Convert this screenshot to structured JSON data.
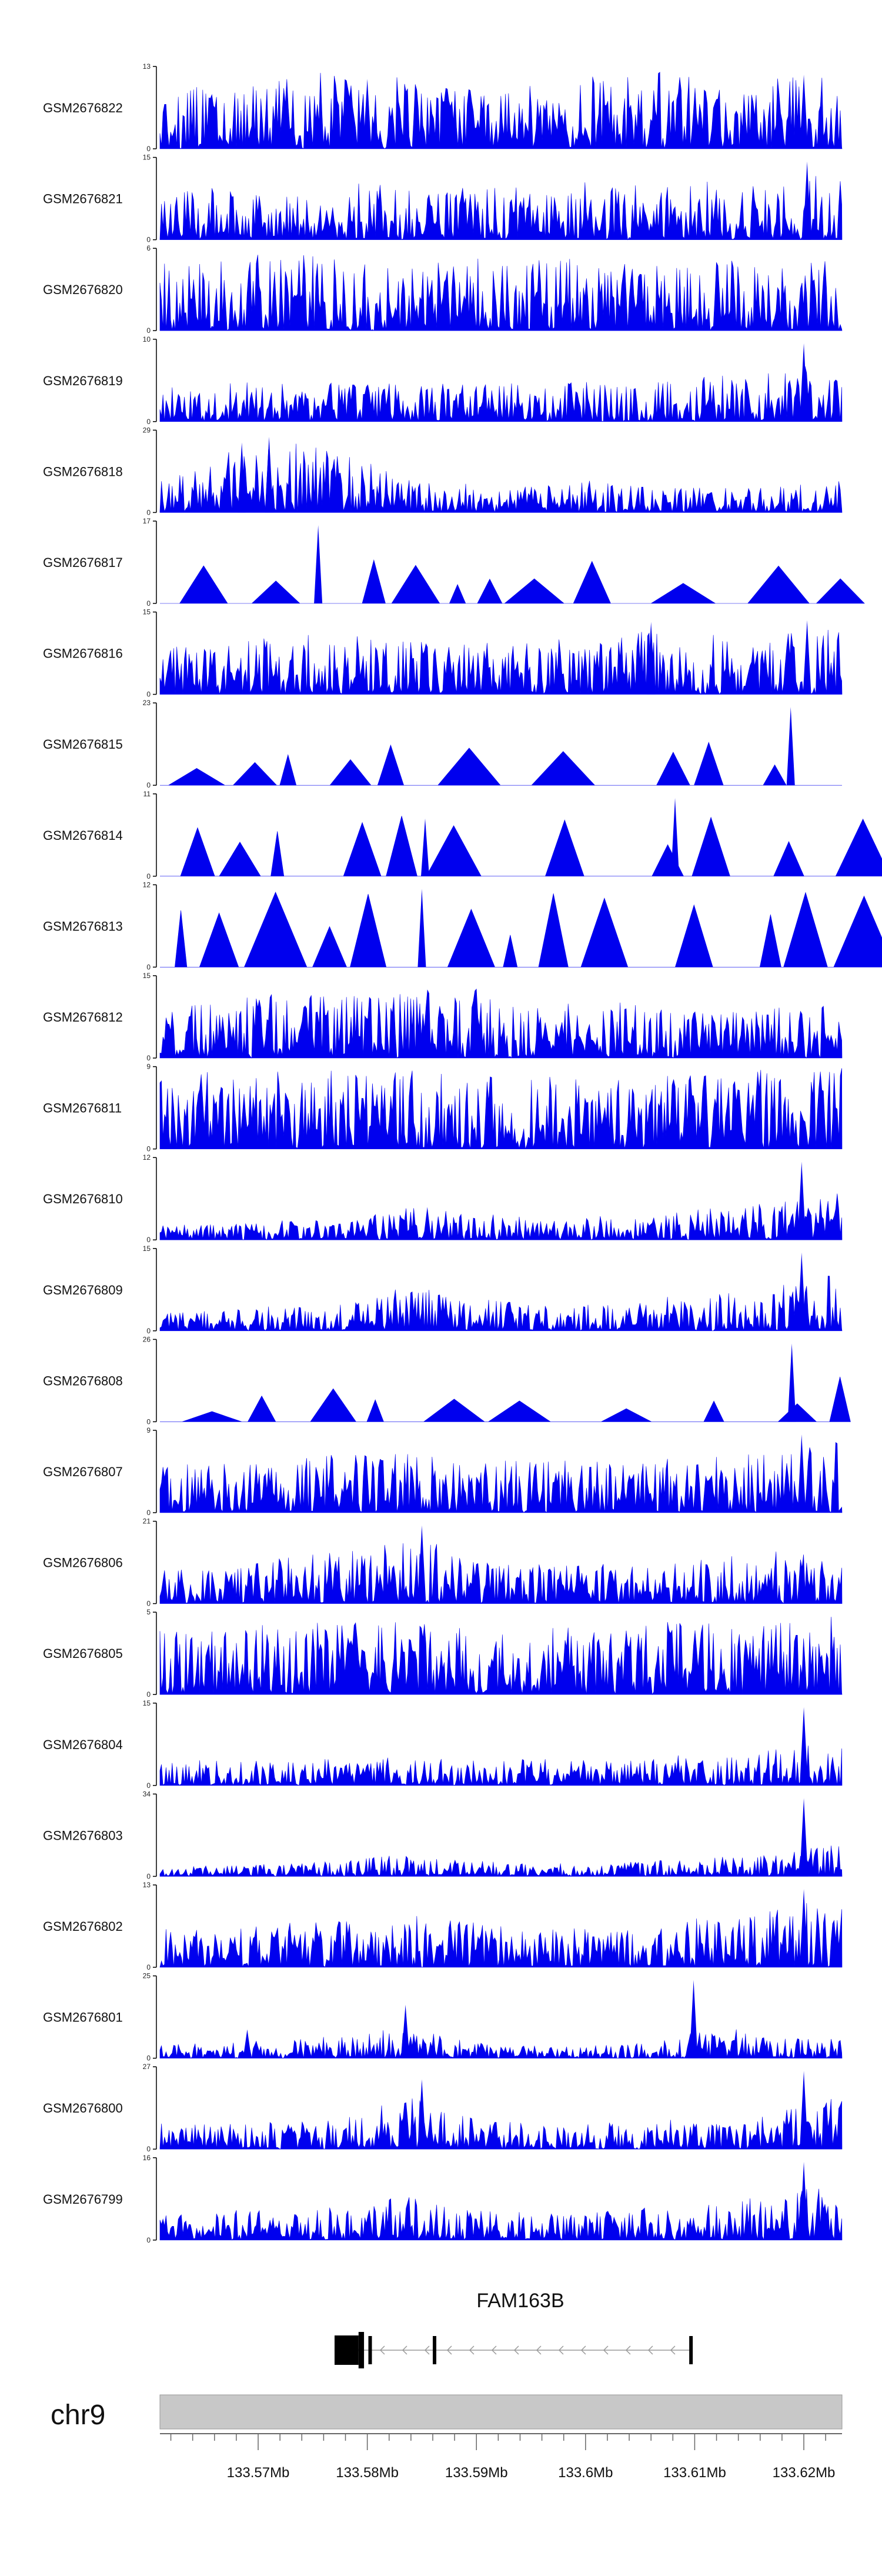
{
  "chart_data": {
    "type": "area",
    "title": "",
    "chromosome": "chr9",
    "x_range": [
      133561000,
      133623500
    ],
    "x_ticks": [
      133570000,
      133580000,
      133590000,
      133600000,
      133610000,
      133620000
    ],
    "x_tick_labels": [
      "133.57Mb",
      "133.58Mb",
      "133.59Mb",
      "133.6Mb",
      "133.61Mb",
      "133.62Mb"
    ],
    "tracks": [
      {
        "name": "GSM2676822",
        "ymax": 13,
        "ymin_label": "0",
        "ymax_label": "13",
        "seed": 22,
        "sparse": false,
        "prof": [
          0.45,
          0.5,
          0.55,
          0.6,
          0.55,
          0.45,
          0.5,
          0.55,
          0.6,
          0.5,
          0.55,
          0.65
        ]
      },
      {
        "name": "GSM2676821",
        "ymax": 15,
        "ymin_label": "0",
        "ymax_label": "15",
        "seed": 21,
        "sparse": false,
        "prof": [
          0.35,
          0.4,
          0.4,
          0.45,
          0.4,
          0.4,
          0.4,
          0.45,
          0.4,
          0.45,
          0.45,
          0.55
        ]
      },
      {
        "name": "GSM2676820",
        "ymax": 6,
        "ymin_label": "0",
        "ymax_label": "6",
        "seed": 20,
        "sparse": false,
        "prof": [
          0.55,
          0.6,
          0.6,
          0.6,
          0.5,
          0.55,
          0.55,
          0.55,
          0.5,
          0.55,
          0.55,
          0.55
        ]
      },
      {
        "name": "GSM2676819",
        "ymax": 10,
        "ymin_label": "0",
        "ymax_label": "10",
        "seed": 19,
        "sparse": false,
        "prof": [
          0.3,
          0.3,
          0.3,
          0.3,
          0.3,
          0.3,
          0.3,
          0.3,
          0.3,
          0.35,
          0.4,
          0.45
        ]
      },
      {
        "name": "GSM2676818",
        "ymax": 29,
        "ymin_label": "0",
        "ymax_label": "29",
        "seed": 18,
        "sparse": false,
        "prof": [
          0.25,
          0.45,
          0.55,
          0.45,
          0.25,
          0.25,
          0.2,
          0.25,
          0.2,
          0.2,
          0.2,
          0.25
        ]
      },
      {
        "name": "GSM2676817",
        "ymax": 17,
        "ymin_label": "0",
        "ymax_label": "17",
        "seed": 17,
        "sparse": true,
        "prof": [
          0.3,
          0.35,
          0.35,
          0.4,
          0.35,
          0.35,
          0.4,
          0.45,
          0.35,
          0.3,
          0.35,
          0.35
        ]
      },
      {
        "name": "GSM2676816",
        "ymax": 15,
        "ymin_label": "0",
        "ymax_label": "15",
        "seed": 16,
        "sparse": false,
        "prof": [
          0.35,
          0.4,
          0.45,
          0.45,
          0.4,
          0.4,
          0.45,
          0.4,
          0.5,
          0.45,
          0.45,
          0.55
        ]
      },
      {
        "name": "GSM2676815",
        "ymax": 23,
        "ymin_label": "0",
        "ymax_label": "23",
        "seed": 15,
        "sparse": true,
        "prof": [
          0.3,
          0.3,
          0.25,
          0.3,
          0.25,
          0.3,
          0.3,
          0.3,
          0.3,
          0.3,
          0.35,
          0.45
        ]
      },
      {
        "name": "GSM2676814",
        "ymax": 11,
        "ymin_label": "0",
        "ymax_label": "11",
        "seed": 14,
        "sparse": true,
        "prof": [
          0.35,
          0.4,
          0.35,
          0.4,
          0.45,
          0.4,
          0.4,
          0.45,
          0.5,
          0.4,
          0.4,
          0.4
        ]
      },
      {
        "name": "GSM2676813",
        "ymax": 12,
        "ymin_label": "0",
        "ymax_label": "12",
        "seed": 13,
        "sparse": true,
        "prof": [
          0.55,
          0.6,
          0.55,
          0.55,
          0.6,
          0.6,
          0.6,
          0.55,
          0.55,
          0.55,
          0.55,
          0.55
        ]
      },
      {
        "name": "GSM2676812",
        "ymax": 15,
        "ymin_label": "0",
        "ymax_label": "15",
        "seed": 12,
        "sparse": false,
        "prof": [
          0.35,
          0.45,
          0.55,
          0.5,
          0.5,
          0.55,
          0.4,
          0.45,
          0.4,
          0.35,
          0.4,
          0.4
        ]
      },
      {
        "name": "GSM2676811",
        "ymax": 9,
        "ymin_label": "0",
        "ymax_label": "9",
        "seed": 11,
        "sparse": false,
        "prof": [
          0.6,
          0.6,
          0.6,
          0.6,
          0.6,
          0.55,
          0.55,
          0.55,
          0.55,
          0.6,
          0.6,
          0.65
        ]
      },
      {
        "name": "GSM2676810",
        "ymax": 12,
        "ymin_label": "0",
        "ymax_label": "12",
        "seed": 10,
        "sparse": false,
        "prof": [
          0.12,
          0.12,
          0.15,
          0.15,
          0.25,
          0.2,
          0.18,
          0.18,
          0.2,
          0.25,
          0.3,
          0.4
        ]
      },
      {
        "name": "GSM2676809",
        "ymax": 15,
        "ymin_label": "0",
        "ymax_label": "15",
        "seed": 9,
        "sparse": false,
        "prof": [
          0.15,
          0.15,
          0.2,
          0.2,
          0.35,
          0.25,
          0.2,
          0.2,
          0.25,
          0.3,
          0.35,
          0.45
        ]
      },
      {
        "name": "GSM2676808",
        "ymax": 26,
        "ymin_label": "0",
        "ymax_label": "26",
        "seed": 8,
        "sparse": true,
        "prof": [
          0.2,
          0.2,
          0.2,
          0.25,
          0.25,
          0.2,
          0.2,
          0.2,
          0.2,
          0.2,
          0.25,
          0.35
        ]
      },
      {
        "name": "GSM2676807",
        "ymax": 9,
        "ymin_label": "0",
        "ymax_label": "9",
        "seed": 7,
        "sparse": false,
        "prof": [
          0.35,
          0.4,
          0.4,
          0.45,
          0.45,
          0.4,
          0.4,
          0.4,
          0.4,
          0.45,
          0.45,
          0.55
        ]
      },
      {
        "name": "GSM2676806",
        "ymax": 21,
        "ymin_label": "0",
        "ymax_label": "21",
        "seed": 6,
        "sparse": false,
        "prof": [
          0.3,
          0.3,
          0.35,
          0.4,
          0.55,
          0.35,
          0.3,
          0.3,
          0.3,
          0.35,
          0.4,
          0.45
        ]
      },
      {
        "name": "GSM2676805",
        "ymax": 5,
        "ymin_label": "0",
        "ymax_label": "5",
        "seed": 5,
        "sparse": false,
        "prof": [
          0.5,
          0.5,
          0.55,
          0.55,
          0.55,
          0.55,
          0.5,
          0.55,
          0.55,
          0.55,
          0.55,
          0.6
        ]
      },
      {
        "name": "GSM2676804",
        "ymax": 15,
        "ymin_label": "0",
        "ymax_label": "15",
        "seed": 4,
        "sparse": false,
        "prof": [
          0.2,
          0.2,
          0.2,
          0.22,
          0.22,
          0.2,
          0.2,
          0.2,
          0.22,
          0.25,
          0.3,
          0.4
        ]
      },
      {
        "name": "GSM2676803",
        "ymax": 34,
        "ymin_label": "0",
        "ymax_label": "34",
        "seed": 3,
        "sparse": false,
        "prof": [
          0.08,
          0.08,
          0.1,
          0.12,
          0.18,
          0.12,
          0.1,
          0.1,
          0.12,
          0.15,
          0.18,
          0.25
        ]
      },
      {
        "name": "GSM2676802",
        "ymax": 13,
        "ymin_label": "0",
        "ymax_label": "13",
        "seed": 2,
        "sparse": false,
        "prof": [
          0.3,
          0.3,
          0.35,
          0.35,
          0.4,
          0.35,
          0.3,
          0.3,
          0.35,
          0.4,
          0.45,
          0.55
        ]
      },
      {
        "name": "GSM2676801",
        "ymax": 25,
        "ymin_label": "0",
        "ymax_label": "25",
        "seed": 1,
        "sparse": false,
        "prof": [
          0.1,
          0.12,
          0.15,
          0.2,
          0.25,
          0.12,
          0.1,
          0.1,
          0.12,
          0.25,
          0.15,
          0.15
        ]
      },
      {
        "name": "GSM2676800",
        "ymax": 27,
        "ymin_label": "0",
        "ymax_label": "27",
        "seed": 100,
        "sparse": false,
        "prof": [
          0.2,
          0.2,
          0.22,
          0.25,
          0.4,
          0.25,
          0.2,
          0.2,
          0.22,
          0.25,
          0.3,
          0.4
        ]
      },
      {
        "name": "GSM2676799",
        "ymax": 16,
        "ymin_label": "0",
        "ymax_label": "16",
        "seed": 99,
        "sparse": false,
        "prof": [
          0.2,
          0.22,
          0.25,
          0.25,
          0.35,
          0.25,
          0.22,
          0.22,
          0.25,
          0.3,
          0.35,
          0.45
        ]
      }
    ],
    "peaks": [
      {
        "track": "GSM2676822",
        "pos": 133620000,
        "frac": 0.9
      },
      {
        "track": "GSM2676822",
        "pos": 133580000,
        "frac": 0.85
      },
      {
        "track": "GSM2676821",
        "pos": 133620300,
        "frac": 0.95
      },
      {
        "track": "GSM2676819",
        "pos": 133620000,
        "frac": 0.95
      },
      {
        "track": "GSM2676818",
        "pos": 133571000,
        "frac": 0.92
      },
      {
        "track": "GSM2676818",
        "pos": 133568500,
        "frac": 0.85
      },
      {
        "track": "GSM2676817",
        "pos": 133575500,
        "frac": 0.95
      },
      {
        "track": "GSM2676816",
        "pos": 133620300,
        "frac": 0.9
      },
      {
        "track": "GSM2676816",
        "pos": 133606000,
        "frac": 0.88
      },
      {
        "track": "GSM2676815",
        "pos": 133618800,
        "frac": 0.95
      },
      {
        "track": "GSM2676814",
        "pos": 133608200,
        "frac": 0.95
      },
      {
        "track": "GSM2676814",
        "pos": 133585300,
        "frac": 0.7
      },
      {
        "track": "GSM2676813",
        "pos": 133585000,
        "frac": 0.95
      },
      {
        "track": "GSM2676810",
        "pos": 133619800,
        "frac": 0.95
      },
      {
        "track": "GSM2676810",
        "pos": 133585500,
        "frac": 0.4
      },
      {
        "track": "GSM2676809",
        "pos": 133619800,
        "frac": 0.95
      },
      {
        "track": "GSM2676808",
        "pos": 133618900,
        "frac": 0.95
      },
      {
        "track": "GSM2676807",
        "pos": 133619800,
        "frac": 0.95
      },
      {
        "track": "GSM2676806",
        "pos": 133585000,
        "frac": 0.95
      },
      {
        "track": "GSM2676804",
        "pos": 133620000,
        "frac": 0.95
      },
      {
        "track": "GSM2676803",
        "pos": 133620000,
        "frac": 0.95
      },
      {
        "track": "GSM2676802",
        "pos": 133620000,
        "frac": 0.95
      },
      {
        "track": "GSM2676801",
        "pos": 133609900,
        "frac": 0.95
      },
      {
        "track": "GSM2676801",
        "pos": 133583500,
        "frac": 0.65
      },
      {
        "track": "GSM2676801",
        "pos": 133569000,
        "frac": 0.35
      },
      {
        "track": "GSM2676800",
        "pos": 133585000,
        "frac": 0.85
      },
      {
        "track": "GSM2676800",
        "pos": 133620000,
        "frac": 0.95
      },
      {
        "track": "GSM2676799",
        "pos": 133620000,
        "frac": 0.95
      }
    ],
    "gene": {
      "name": "FAM163B",
      "strand": "-",
      "start": 133577000,
      "end": 133609800,
      "exons": [
        {
          "start": 133577000,
          "end": 133579200,
          "kind": "utr"
        },
        {
          "start": 133579200,
          "end": 133579700,
          "kind": "cds"
        },
        {
          "start": 133580100,
          "end": 133580350,
          "kind": "thin"
        },
        {
          "start": 133586000,
          "end": 133586300,
          "kind": "thin"
        },
        {
          "start": 133609500,
          "end": 133609800,
          "kind": "thin"
        }
      ]
    },
    "colors": {
      "signal": "#0000ee",
      "axis": "#000000",
      "ideogram": "#c8c8c8",
      "gene": "#000000"
    }
  }
}
